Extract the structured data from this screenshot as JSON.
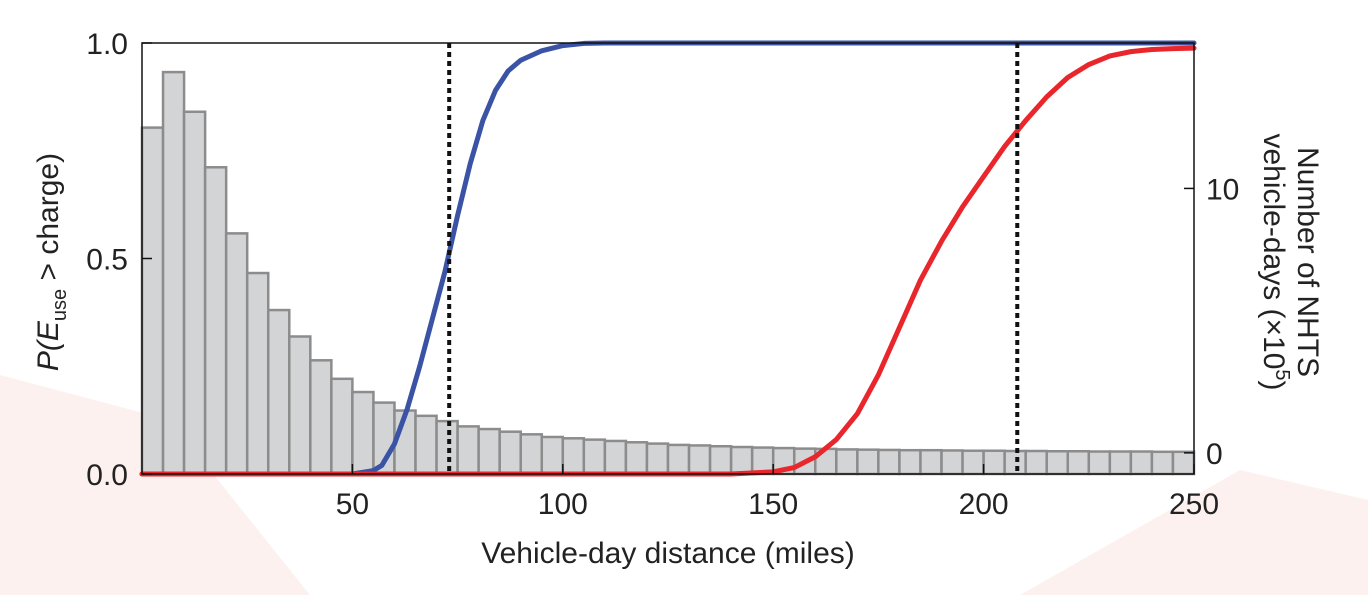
{
  "chart_data": {
    "type": "bar",
    "xlabel": "Vehicle-day distance (miles)",
    "ylabel_left": {
      "prefix": "P(",
      "var": "E",
      "sub": "use",
      "suffix": " > charge)"
    },
    "ylabel_right": {
      "line1": "Number of NHTS",
      "line2_prefix": "vehicle-days (×10",
      "line2_sup": "5",
      "line2_suffix": ")"
    },
    "xlim": [
      0,
      250
    ],
    "ylim_left": [
      0,
      1.0
    ],
    "ylim_right": [
      -0.8,
      15.5
    ],
    "x_ticks": [
      50,
      100,
      150,
      200,
      250
    ],
    "x_tick_labels": [
      "50",
      "100",
      "150",
      "200",
      "250"
    ],
    "y_left_ticks": [
      0,
      0.5,
      1.0
    ],
    "y_left_tick_labels": [
      "0.0",
      "0.5",
      "1.0"
    ],
    "y_right_ticks": [
      0,
      10
    ],
    "y_right_tick_labels": [
      "0",
      "10"
    ],
    "histogram": {
      "bin_width": 5,
      "bin_starts": [
        0,
        5,
        10,
        15,
        20,
        25,
        30,
        35,
        40,
        45,
        50,
        55,
        60,
        65,
        70,
        75,
        80,
        85,
        90,
        95,
        100,
        105,
        110,
        115,
        120,
        125,
        130,
        135,
        140,
        145,
        150,
        155,
        160,
        165,
        170,
        175,
        180,
        185,
        190,
        195,
        200,
        205,
        210,
        215,
        220,
        225,
        230,
        235,
        240,
        245
      ],
      "values": [
        12.3,
        14.4,
        12.9,
        10.8,
        8.3,
        6.8,
        5.4,
        4.4,
        3.5,
        2.8,
        2.3,
        1.9,
        1.6,
        1.4,
        1.2,
        1.0,
        0.9,
        0.8,
        0.7,
        0.6,
        0.55,
        0.5,
        0.45,
        0.4,
        0.35,
        0.3,
        0.28,
        0.25,
        0.22,
        0.2,
        0.18,
        0.16,
        0.15,
        0.13,
        0.12,
        0.11,
        0.1,
        0.1,
        0.09,
        0.08,
        0.08,
        0.07,
        0.07,
        0.06,
        0.06,
        0.05,
        0.05,
        0.05,
        0.04,
        0.04
      ]
    },
    "series": [
      {
        "color": "#3a53a4",
        "x": [
          0,
          50,
          55,
          57,
          60,
          63,
          66,
          69,
          72,
          75,
          78,
          81,
          84,
          87,
          90,
          95,
          100,
          105,
          110,
          150,
          200,
          250
        ],
        "y": [
          0,
          0,
          0.008,
          0.02,
          0.07,
          0.15,
          0.25,
          0.36,
          0.47,
          0.6,
          0.72,
          0.82,
          0.89,
          0.935,
          0.96,
          0.982,
          0.994,
          0.999,
          1.0,
          1.0,
          1.0,
          1.0
        ]
      },
      {
        "color": "#e8262b",
        "x": [
          0,
          140,
          150,
          155,
          160,
          165,
          170,
          175,
          180,
          185,
          190,
          195,
          200,
          205,
          210,
          215,
          220,
          225,
          230,
          235,
          240,
          245,
          250
        ],
        "y": [
          0,
          0,
          0.005,
          0.015,
          0.04,
          0.08,
          0.14,
          0.23,
          0.34,
          0.45,
          0.54,
          0.62,
          0.69,
          0.76,
          0.82,
          0.875,
          0.92,
          0.95,
          0.97,
          0.98,
          0.985,
          0.987,
          0.988
        ]
      }
    ],
    "vlines": [
      73,
      208
    ],
    "colors": {
      "bars_fill": "#d3d4d6",
      "bars_stroke": "#8c8c8c",
      "vline": "#111111",
      "frame": "#111111",
      "background_accent": "#fdf1f0"
    },
    "grid": false
  }
}
